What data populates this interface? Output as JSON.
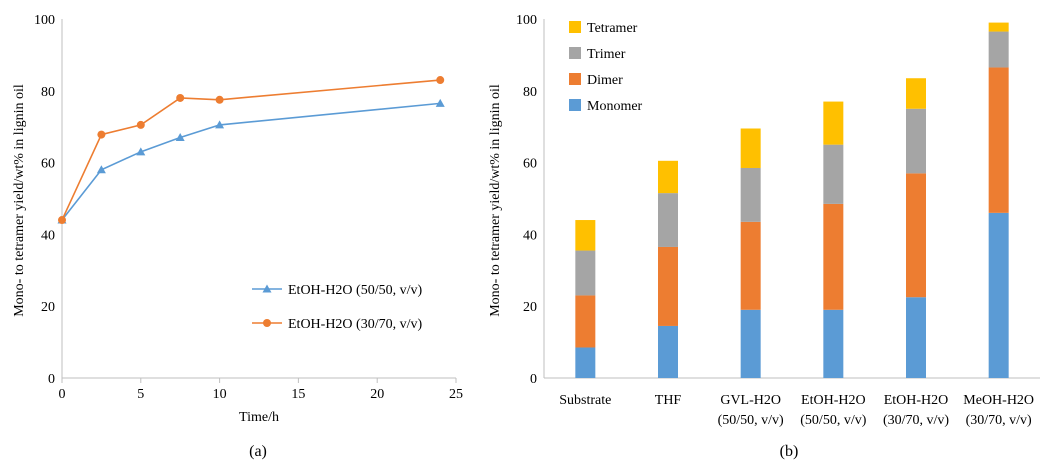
{
  "chart_data": [
    {
      "type": "line",
      "panel_label": "(a)",
      "xlabel": "Time/h",
      "ylabel": "Mono- to tetramer yield/wt% in lignin oil",
      "xlim": [
        0,
        25
      ],
      "ylim": [
        0,
        100
      ],
      "xticks": [
        "0",
        "5",
        "10",
        "15",
        "20",
        "25"
      ],
      "yticks": [
        "0",
        "20",
        "40",
        "60",
        "80",
        "100"
      ],
      "grid": false,
      "legend_position": "bottom-right",
      "series": [
        {
          "name": "EtOH-H2O (50/50, v/v)",
          "color": "#5B9BD5",
          "marker": "triangle",
          "x": [
            0,
            2.5,
            5,
            7.5,
            10,
            24
          ],
          "y": [
            44,
            58,
            63,
            67,
            70.5,
            76.5
          ]
        },
        {
          "name": "EtOH-H2O (30/70, v/v)",
          "color": "#ED7D31",
          "marker": "circle",
          "x": [
            0,
            2.5,
            5,
            7.5,
            10,
            24
          ],
          "y": [
            44,
            67.8,
            70.5,
            78,
            77.5,
            83
          ]
        }
      ]
    },
    {
      "type": "bar",
      "stacked": true,
      "panel_label": "(b)",
      "ylabel": "Mono- to tetramer yield/wt% in lignin oil",
      "ylim": [
        0,
        100
      ],
      "yticks": [
        "0",
        "20",
        "40",
        "60",
        "80",
        "100"
      ],
      "grid": false,
      "legend_position": "top-left",
      "categories": [
        [
          "Substrate"
        ],
        [
          "THF"
        ],
        [
          "GVL-H2O",
          "(50/50, v/v)"
        ],
        [
          "EtOH-H2O",
          "(50/50, v/v)"
        ],
        [
          "EtOH-H2O",
          "(30/70, v/v)"
        ],
        [
          "MeOH-H2O",
          "(30/70, v/v)"
        ]
      ],
      "series": [
        {
          "name": "Monomer",
          "color": "#5B9BD5",
          "values": [
            8.5,
            14.5,
            19,
            19,
            22.5,
            46
          ]
        },
        {
          "name": "Dimer",
          "color": "#ED7D31",
          "values": [
            14.5,
            22,
            24.5,
            29.5,
            34.5,
            40.5
          ]
        },
        {
          "name": "Trimer",
          "color": "#A5A5A5",
          "values": [
            12.5,
            15,
            15,
            16.5,
            18,
            10
          ]
        },
        {
          "name": "Tetramer",
          "color": "#FFC000",
          "values": [
            8.5,
            9,
            11,
            12,
            8.5,
            2.5
          ]
        }
      ]
    }
  ]
}
